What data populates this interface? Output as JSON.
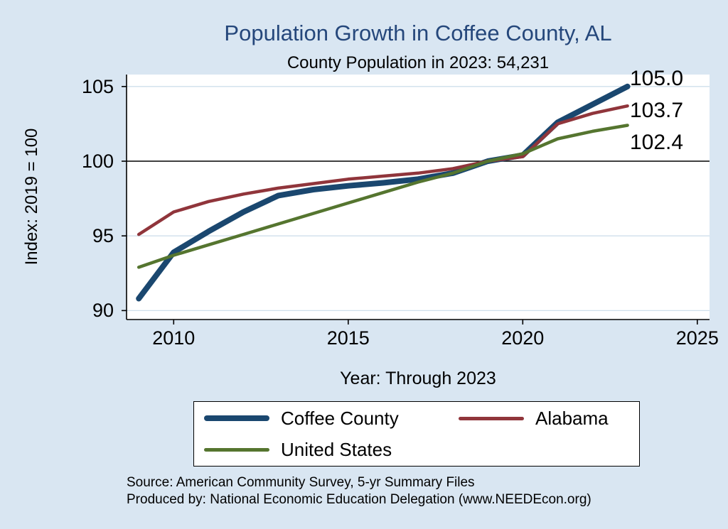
{
  "header": {
    "title": "Population Growth in Coffee County, AL",
    "subtitle": "County Population in 2023: 54,231"
  },
  "axes": {
    "ylabel": "Index: 2019 = 100",
    "xlabel": "Year: Through 2023"
  },
  "footer": {
    "source": "Source: American Community Survey, 5-yr Summary Files",
    "produced_by": "Produced by: National Economic Education Delegation (www.NEEDEcon.org)"
  },
  "colors": {
    "background": "#d9e6f2",
    "title": "#25477b",
    "coffee_county": "#1a476f",
    "alabama": "#90353b",
    "united_states": "#55752f",
    "grid": "#cfdfeb",
    "ref_line": "#000000"
  },
  "legend": {
    "items": [
      {
        "label": "Coffee County",
        "series": "coffee_county"
      },
      {
        "label": "Alabama",
        "series": "alabama"
      },
      {
        "label": "United States",
        "series": "united_states"
      }
    ]
  },
  "chart_data": {
    "type": "line",
    "title": "Population Growth in Coffee County, AL",
    "subtitle": "County Population in 2023: 54,231",
    "xlabel": "Year: Through 2023",
    "ylabel": "Index: 2019 = 100",
    "x": [
      2009,
      2010,
      2011,
      2012,
      2013,
      2014,
      2015,
      2016,
      2017,
      2018,
      2019,
      2020,
      2021,
      2022,
      2023
    ],
    "series": [
      {
        "name": "Coffee County",
        "color": "#1a476f",
        "width": 8,
        "values": [
          90.8,
          93.9,
          95.3,
          96.6,
          97.7,
          98.1,
          98.35,
          98.55,
          98.8,
          99.2,
          100.0,
          100.4,
          102.6,
          103.8,
          105.0
        ]
      },
      {
        "name": "Alabama",
        "color": "#90353b",
        "width": 4.5,
        "values": [
          95.1,
          96.6,
          97.3,
          97.8,
          98.2,
          98.5,
          98.8,
          99.0,
          99.2,
          99.5,
          100.0,
          100.3,
          102.5,
          103.2,
          103.7
        ]
      },
      {
        "name": "United States",
        "color": "#55752f",
        "width": 4.5,
        "values": [
          92.9,
          93.7,
          94.4,
          95.1,
          95.8,
          96.5,
          97.2,
          97.9,
          98.6,
          99.2,
          100.0,
          100.5,
          101.5,
          102.0,
          102.4
        ]
      }
    ],
    "end_labels": [
      "105.0",
      "103.7",
      "102.4"
    ],
    "xticks": [
      2010,
      2015,
      2020,
      2025
    ],
    "yticks": [
      90,
      95,
      100,
      105
    ],
    "xlim": [
      2008.65,
      2025.35
    ],
    "ylim": [
      89.4,
      105.8
    ],
    "ref_line_y": 100,
    "index_base_year": 2019,
    "legend_position": "bottom",
    "grid": true
  }
}
